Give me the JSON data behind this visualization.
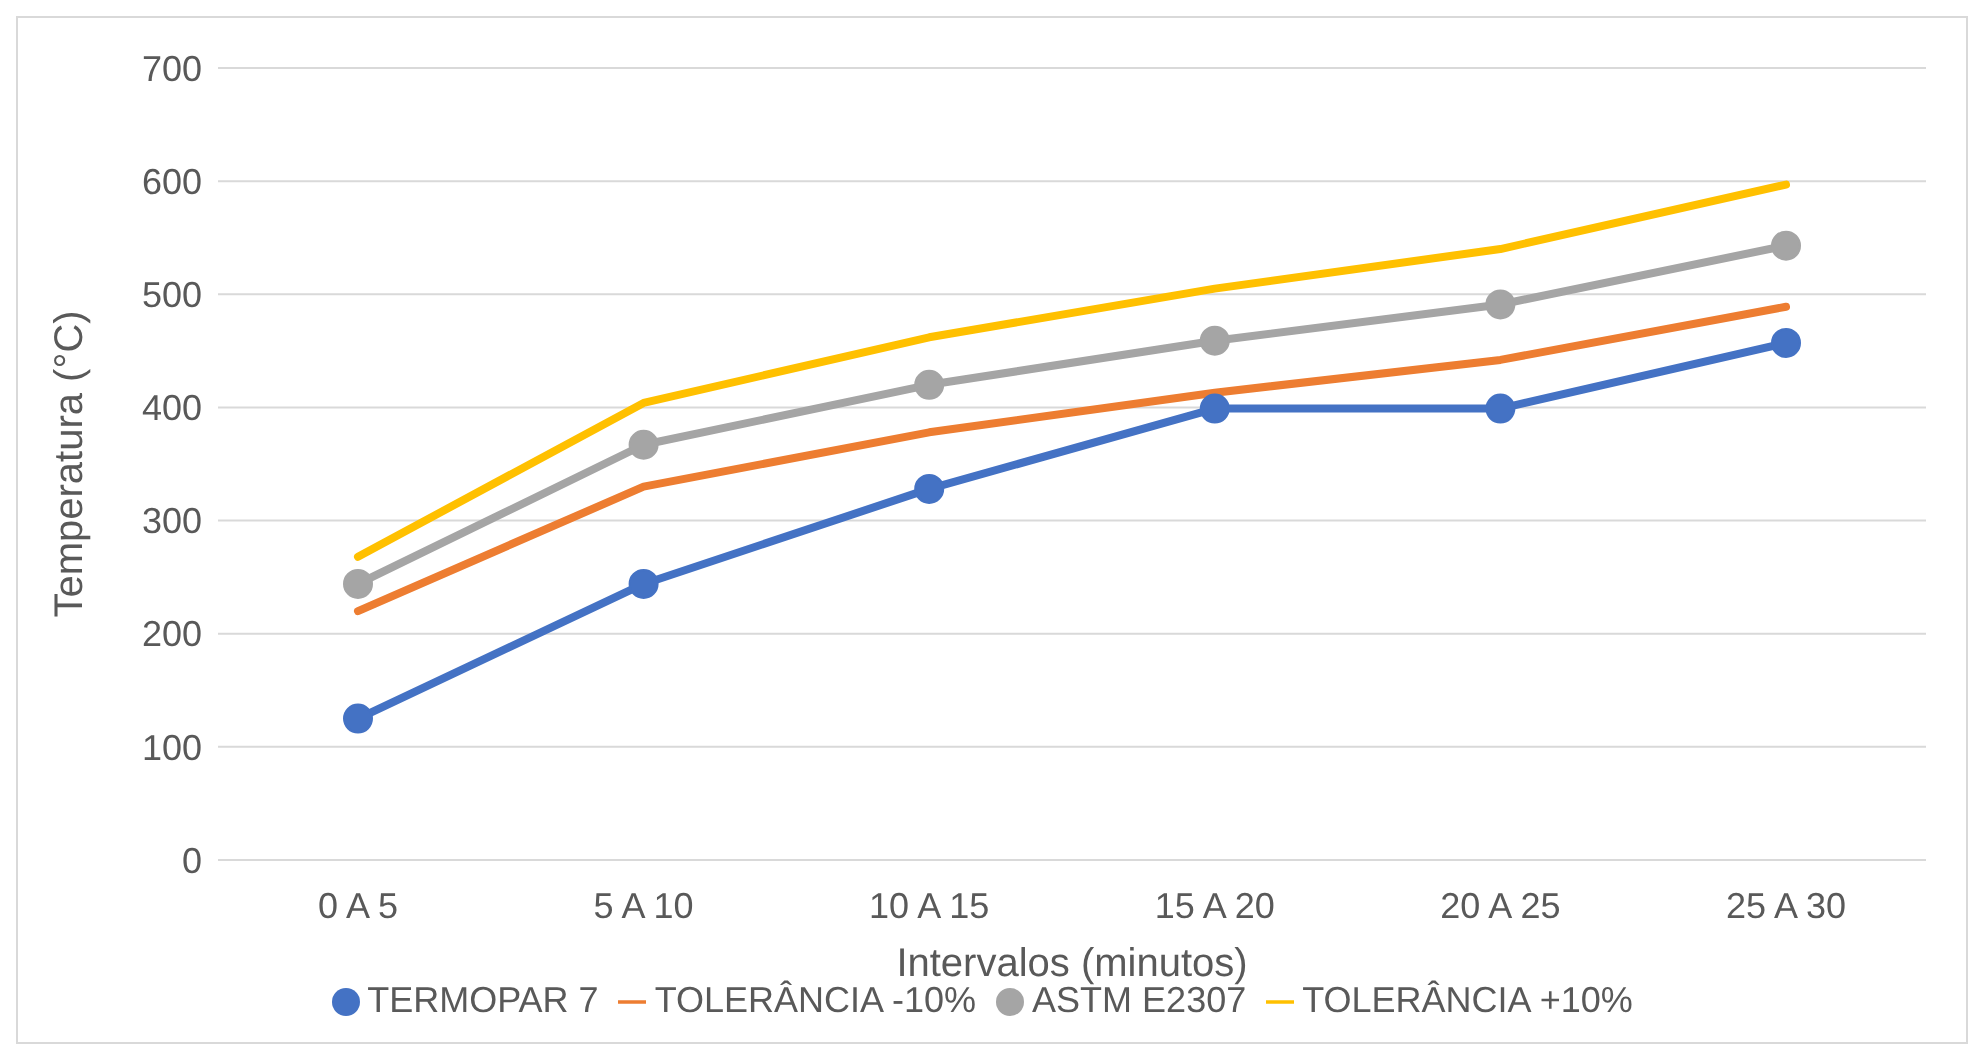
{
  "chart_data": {
    "type": "line",
    "xlabel": "Intervalos (minutos)",
    "ylabel": "Temperatura (°C)",
    "categories": [
      "0 A 5",
      "5 A 10",
      "10 A 15",
      "15 A 20",
      "20 A 25",
      "25 A 30"
    ],
    "series": [
      {
        "name": "TERMOPAR 7",
        "color": "#4472c4",
        "marker": "circle",
        "values": [
          125,
          244,
          328,
          399,
          399,
          457
        ]
      },
      {
        "name": "TOLERÂNCIA -10%",
        "color": "#ed7d31",
        "marker": "none",
        "values": [
          220,
          330,
          378,
          413,
          442,
          489
        ]
      },
      {
        "name": "ASTM E2307",
        "color": "#a5a5a5",
        "marker": "circle",
        "values": [
          244,
          367,
          420,
          459,
          491,
          543
        ]
      },
      {
        "name": "TOLERÂNCIA +10%",
        "color": "#ffc000",
        "marker": "none",
        "values": [
          268,
          404,
          462,
          505,
          540,
          597
        ]
      }
    ],
    "ylim": [
      0,
      700
    ],
    "yticks": [
      0,
      100,
      200,
      300,
      400,
      500,
      600,
      700
    ],
    "grid": "y",
    "legend": "bottom",
    "line_style": "solid"
  }
}
